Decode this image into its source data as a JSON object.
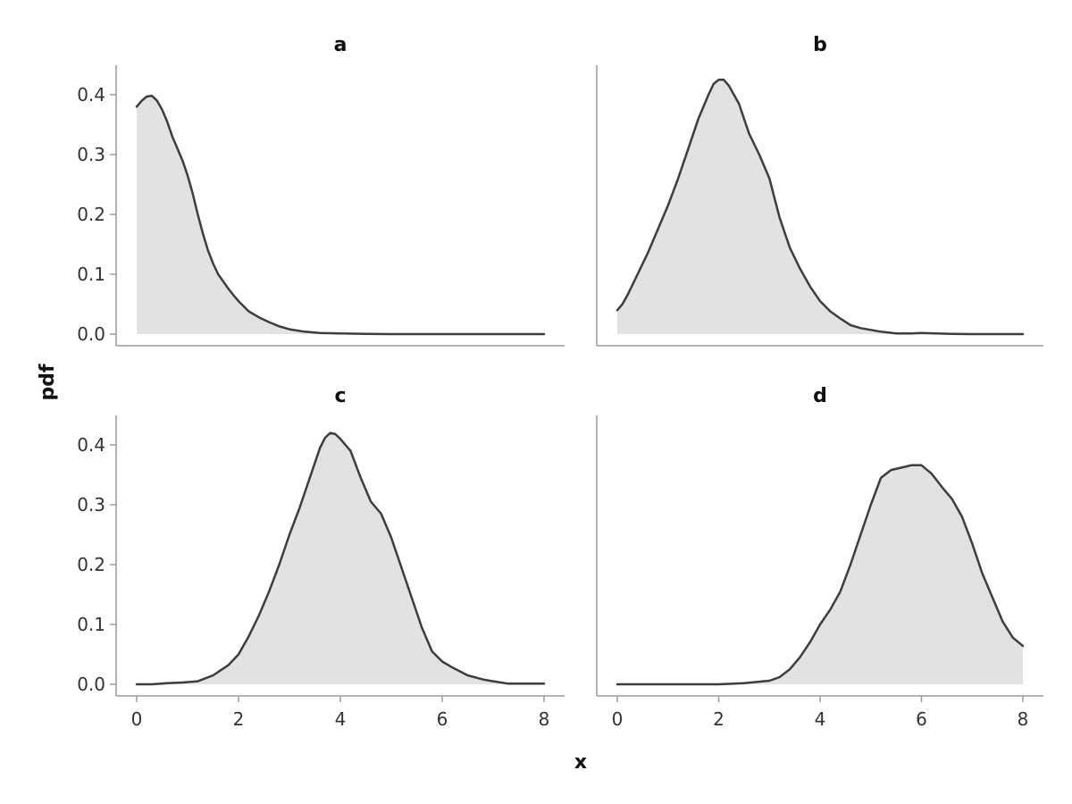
{
  "chart_data": [
    {
      "type": "area",
      "title": "a",
      "xlabel": "x",
      "ylabel": "pdf",
      "xlim": [
        0,
        8
      ],
      "ylim": [
        0,
        0.42
      ],
      "series": [
        {
          "x": [
            0,
            0.1,
            0.2,
            0.3,
            0.4,
            0.5,
            0.6,
            0.7,
            0.8,
            0.9,
            1.0,
            1.1,
            1.2,
            1.3,
            1.4,
            1.5,
            1.6,
            1.7,
            1.8,
            1.9,
            2.0,
            2.2,
            2.4,
            2.6,
            2.8,
            3.0,
            3.3,
            3.6,
            4.0,
            4.5,
            5,
            5.5,
            6,
            6.5,
            7,
            7.5,
            8
          ],
          "y": [
            0.38,
            0.39,
            0.397,
            0.398,
            0.39,
            0.375,
            0.355,
            0.33,
            0.31,
            0.29,
            0.265,
            0.235,
            0.2,
            0.168,
            0.14,
            0.118,
            0.1,
            0.088,
            0.076,
            0.065,
            0.055,
            0.038,
            0.028,
            0.02,
            0.013,
            0.008,
            0.004,
            0.002,
            0.001,
            0.0005,
            0,
            0,
            0,
            0,
            0,
            0,
            0
          ]
        }
      ]
    },
    {
      "type": "area",
      "title": "b",
      "xlabel": "x",
      "ylabel": "pdf",
      "xlim": [
        0,
        8
      ],
      "ylim": [
        0,
        0.42
      ],
      "series": [
        {
          "x": [
            0,
            0.1,
            0.2,
            0.4,
            0.6,
            0.8,
            1.0,
            1.2,
            1.4,
            1.6,
            1.8,
            1.9,
            2.0,
            2.1,
            2.2,
            2.4,
            2.6,
            2.8,
            3.0,
            3.2,
            3.4,
            3.6,
            3.8,
            4.0,
            4.2,
            4.4,
            4.6,
            4.8,
            5.0,
            5.2,
            5.5,
            5.8,
            6.0,
            6.3,
            6.6,
            7.0,
            7.5,
            8.0
          ],
          "y": [
            0.04,
            0.05,
            0.065,
            0.1,
            0.135,
            0.175,
            0.215,
            0.26,
            0.31,
            0.36,
            0.4,
            0.418,
            0.425,
            0.425,
            0.415,
            0.385,
            0.335,
            0.3,
            0.26,
            0.195,
            0.145,
            0.11,
            0.08,
            0.055,
            0.038,
            0.026,
            0.015,
            0.01,
            0.007,
            0.004,
            0.001,
            0.001,
            0.002,
            0.001,
            0.0005,
            0,
            0,
            0
          ]
        }
      ]
    },
    {
      "type": "area",
      "title": "c",
      "xlabel": "x",
      "ylabel": "pdf",
      "xlim": [
        0,
        8
      ],
      "ylim": [
        0,
        0.42
      ],
      "series": [
        {
          "x": [
            0,
            0.3,
            0.6,
            0.9,
            1.2,
            1.5,
            1.8,
            2.0,
            2.2,
            2.4,
            2.6,
            2.8,
            3.0,
            3.2,
            3.4,
            3.6,
            3.7,
            3.8,
            3.9,
            4.0,
            4.2,
            4.4,
            4.6,
            4.8,
            5.0,
            5.2,
            5.4,
            5.6,
            5.8,
            6.0,
            6.2,
            6.5,
            6.8,
            7.0,
            7.3,
            7.6,
            8.0
          ],
          "y": [
            0,
            0,
            0.002,
            0.003,
            0.005,
            0.015,
            0.032,
            0.05,
            0.08,
            0.115,
            0.155,
            0.2,
            0.25,
            0.295,
            0.345,
            0.395,
            0.412,
            0.42,
            0.418,
            0.41,
            0.39,
            0.345,
            0.305,
            0.285,
            0.245,
            0.195,
            0.145,
            0.095,
            0.055,
            0.038,
            0.028,
            0.015,
            0.008,
            0.005,
            0.001,
            0.001,
            0.001
          ]
        }
      ]
    },
    {
      "type": "area",
      "title": "d",
      "xlabel": "x",
      "ylabel": "pdf",
      "xlim": [
        0,
        8
      ],
      "ylim": [
        0,
        0.42
      ],
      "series": [
        {
          "x": [
            0,
            1,
            2,
            2.5,
            3.0,
            3.2,
            3.4,
            3.6,
            3.8,
            4.0,
            4.2,
            4.4,
            4.6,
            4.8,
            5.0,
            5.2,
            5.4,
            5.6,
            5.8,
            6.0,
            6.2,
            6.4,
            6.6,
            6.8,
            7.0,
            7.2,
            7.4,
            7.6,
            7.8,
            8.0
          ],
          "y": [
            0,
            0,
            0,
            0.002,
            0.006,
            0.012,
            0.025,
            0.045,
            0.07,
            0.1,
            0.125,
            0.155,
            0.2,
            0.25,
            0.3,
            0.345,
            0.358,
            0.362,
            0.366,
            0.366,
            0.352,
            0.33,
            0.31,
            0.28,
            0.235,
            0.185,
            0.145,
            0.105,
            0.078,
            0.064
          ]
        }
      ]
    }
  ],
  "shared": {
    "xlabel": "x",
    "ylabel": "pdf",
    "x_ticks": [
      0,
      2,
      4,
      6,
      8
    ],
    "y_ticks": [
      0.0,
      0.1,
      0.2,
      0.3,
      0.4
    ],
    "y_tick_labels": [
      "0.0",
      "0.1",
      "0.2",
      "0.3",
      "0.4"
    ]
  },
  "colors": {
    "fill": "#e2e2e2",
    "line": "#3d3d3d",
    "axis": "#9a9a9a",
    "text": "#111111"
  }
}
